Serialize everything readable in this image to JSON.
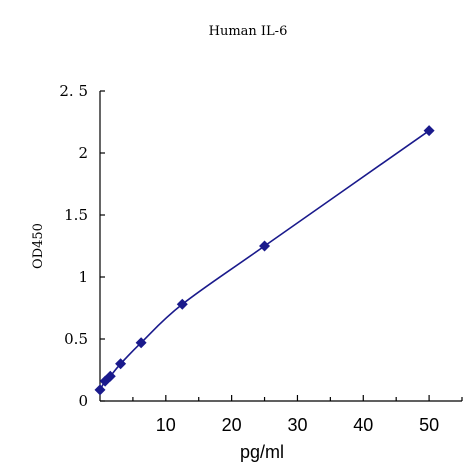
{
  "chart_data": {
    "type": "scatter",
    "title": "Human IL-6",
    "xlabel": "pg/ml",
    "ylabel": "OD450",
    "xlim": [
      0,
      55
    ],
    "ylim": [
      0,
      2.5
    ],
    "x_ticks": [
      10,
      20,
      30,
      40,
      50
    ],
    "x_tick_labels": [
      "10",
      "20",
      "30",
      "40",
      "50"
    ],
    "y_ticks": [
      0,
      0.5,
      1,
      1.5,
      2,
      2.5
    ],
    "y_tick_labels": [
      "0",
      "0.5",
      "1",
      "1.5",
      "2",
      "2. 5"
    ],
    "grid": false,
    "series": [
      {
        "x": [
          0,
          0.78,
          1.56,
          3.13,
          6.25,
          12.5,
          25,
          50
        ],
        "y": [
          0.09,
          0.16,
          0.2,
          0.3,
          0.47,
          0.78,
          1.25,
          2.18
        ],
        "marker": "diamond",
        "trendline": true,
        "color": "#1a1a8c"
      }
    ]
  }
}
